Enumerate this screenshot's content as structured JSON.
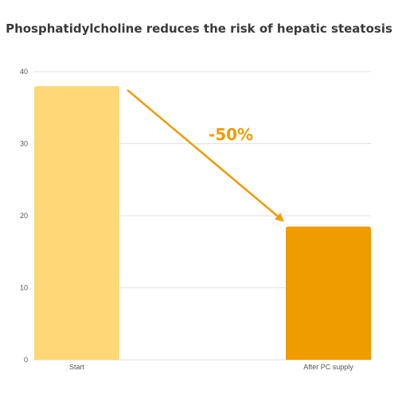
{
  "chart_data": {
    "type": "bar",
    "title": "Phosphatidylcholine reduces the risk of hepatic steatosis",
    "categories": [
      "Start",
      "After PC supply"
    ],
    "values": [
      38,
      18.5
    ],
    "bar_colors": [
      "#FED877",
      "#EE9C00"
    ],
    "ylim": [
      0,
      40
    ],
    "yticks": [
      0,
      10,
      20,
      30,
      40
    ],
    "grid": true,
    "xlabel": "",
    "ylabel": "",
    "annotation": {
      "text": "-50%",
      "color": "#EE9C00",
      "arrow_from_category": "Start",
      "arrow_to_category": "After PC supply"
    }
  }
}
